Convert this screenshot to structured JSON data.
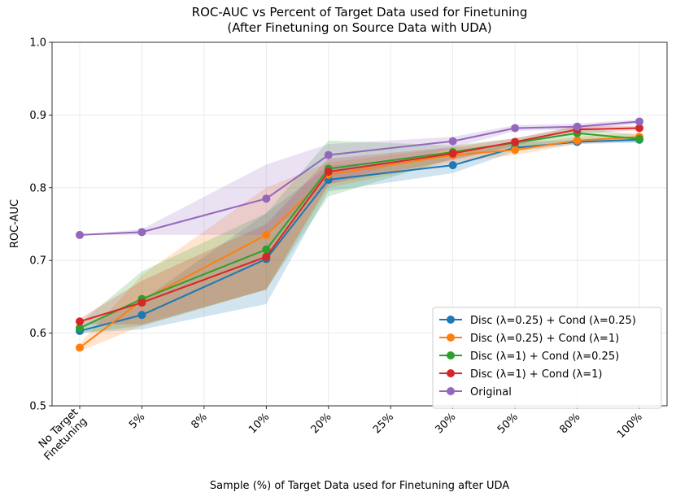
{
  "chart_data": {
    "type": "line",
    "title": "ROC-AUC vs Percent of Target Data used for Finetuning",
    "subtitle": "(After Finetuning on Source Data with UDA)",
    "x_label": "Sample (%) of Target Data used for Finetuning after UDA",
    "y_label": "ROC-AUC",
    "categories": [
      "No Target\nFinetuning",
      "5%",
      "8%",
      "10%",
      "20%",
      "25%",
      "30%",
      "50%",
      "80%",
      "100%"
    ],
    "ylim": [
      0.5,
      1.0
    ],
    "yticks": [
      0.5,
      0.6,
      0.7,
      0.8,
      0.9,
      {
        "value": 1.0,
        "label": "1.0"
      }
    ],
    "grid": true,
    "legend": "lower right",
    "series": [
      {
        "name": "Disc (λ=0.25) + Cond (λ=0.25)",
        "color": "#1f77b4",
        "x": [
          "No Target\nFinetuning",
          "5%",
          "10%",
          "20%",
          "30%",
          "50%",
          "80%",
          "100%"
        ],
        "values": [
          0.603,
          0.625,
          0.702,
          0.811,
          0.831,
          0.855,
          0.863,
          0.866
        ],
        "lower": [
          0.6,
          0.605,
          0.64,
          0.795,
          0.82,
          0.85,
          0.86,
          0.862
        ],
        "upper": [
          0.607,
          0.645,
          0.765,
          0.83,
          0.845,
          0.862,
          0.866,
          0.87
        ]
      },
      {
        "name": "Disc (λ=0.25) + Cond (λ=1)",
        "color": "#ff7f0e",
        "x": [
          "No Target\nFinetuning",
          "5%",
          "10%",
          "20%",
          "30%",
          "50%",
          "80%",
          "100%"
        ],
        "values": [
          0.58,
          0.645,
          0.735,
          0.818,
          0.845,
          0.852,
          0.865,
          0.87
        ],
        "lower": [
          0.575,
          0.61,
          0.66,
          0.8,
          0.835,
          0.845,
          0.86,
          0.865
        ],
        "upper": [
          0.585,
          0.68,
          0.8,
          0.835,
          0.855,
          0.86,
          0.87,
          0.876
        ]
      },
      {
        "name": "Disc (λ=1) + Cond (λ=0.25)",
        "color": "#2ca02c",
        "x": [
          "No Target\nFinetuning",
          "5%",
          "10%",
          "20%",
          "30%",
          "50%",
          "80%",
          "100%"
        ],
        "values": [
          0.607,
          0.647,
          0.715,
          0.826,
          0.849,
          0.862,
          0.875,
          0.867
        ],
        "lower": [
          0.6,
          0.61,
          0.66,
          0.788,
          0.84,
          0.855,
          0.866,
          0.862
        ],
        "upper": [
          0.614,
          0.685,
          0.765,
          0.865,
          0.858,
          0.868,
          0.884,
          0.872
        ]
      },
      {
        "name": "Disc (λ=1) + Cond (λ=1)",
        "color": "#d62728",
        "x": [
          "No Target\nFinetuning",
          "5%",
          "10%",
          "20%",
          "30%",
          "50%",
          "80%",
          "100%"
        ],
        "values": [
          0.616,
          0.642,
          0.705,
          0.822,
          0.847,
          0.863,
          0.88,
          0.882
        ],
        "lower": [
          0.612,
          0.612,
          0.66,
          0.805,
          0.838,
          0.858,
          0.875,
          0.879
        ],
        "upper": [
          0.62,
          0.672,
          0.75,
          0.84,
          0.856,
          0.868,
          0.885,
          0.885
        ]
      },
      {
        "name": "Original",
        "color": "#9467bd",
        "x": [
          "No Target\nFinetuning",
          "5%",
          "10%",
          "20%",
          "30%",
          "50%",
          "80%",
          "100%"
        ],
        "values": [
          0.735,
          0.739,
          0.785,
          0.845,
          0.864,
          0.882,
          0.884,
          0.891
        ],
        "lower": [
          0.735,
          0.735,
          0.735,
          0.805,
          0.855,
          0.878,
          0.88,
          0.888
        ],
        "upper": [
          0.735,
          0.743,
          0.832,
          0.86,
          0.87,
          0.886,
          0.888,
          0.894
        ]
      }
    ]
  }
}
